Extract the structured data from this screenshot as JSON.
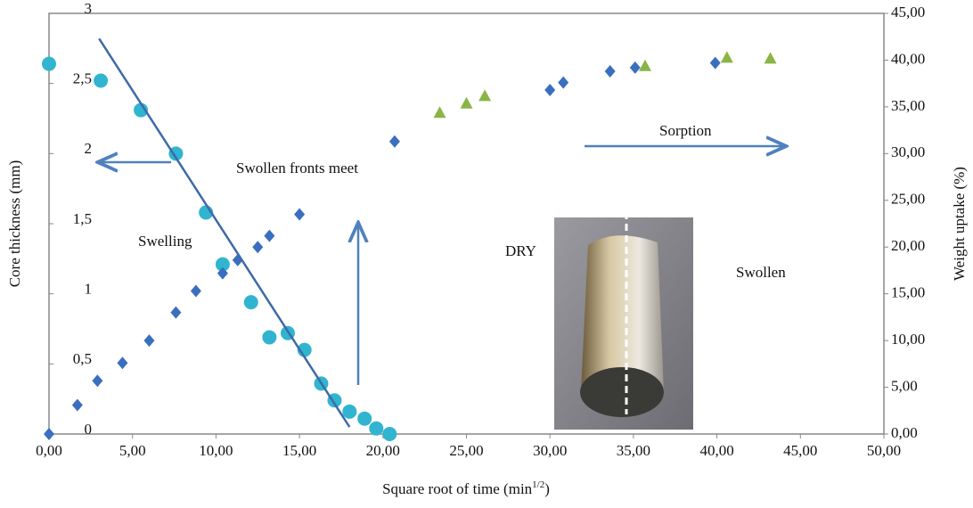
{
  "chart_data": {
    "type": "scatter",
    "x_label": {
      "text": "Square root of time (min",
      "superscript": "1/2",
      "suffix": ")"
    },
    "y_label": "Core thickness (mm)",
    "y2_label": "Weight uptake (%)",
    "xlim": [
      0,
      50
    ],
    "ylim": [
      0,
      3
    ],
    "y2lim": [
      0,
      45
    ],
    "xticks": [
      {
        "value": 0,
        "label": "0,00"
      },
      {
        "value": 5,
        "label": "5,00"
      },
      {
        "value": 10,
        "label": "10,00"
      },
      {
        "value": 15,
        "label": "15,00"
      },
      {
        "value": 20,
        "label": "20,00"
      },
      {
        "value": 25,
        "label": "25,00"
      },
      {
        "value": 30,
        "label": "30,00"
      },
      {
        "value": 35,
        "label": "35,00"
      },
      {
        "value": 40,
        "label": "40,00"
      },
      {
        "value": 45,
        "label": "45,00"
      },
      {
        "value": 50,
        "label": "50,00"
      }
    ],
    "yticks": [
      0,
      {
        "value": 0.5,
        "label": "0,5"
      },
      1,
      {
        "value": 1.5,
        "label": "1,5"
      },
      2,
      {
        "value": 2.5,
        "label": "2,5"
      },
      3
    ],
    "y2ticks": [
      {
        "value": 0,
        "label": "0,00"
      },
      {
        "value": 5,
        "label": "5,00"
      },
      {
        "value": 10,
        "label": "10,00"
      },
      {
        "value": 15,
        "label": "15,00"
      },
      {
        "value": 20,
        "label": "20,00"
      },
      {
        "value": 25,
        "label": "25,00"
      },
      {
        "value": 30,
        "label": "30,00"
      },
      {
        "value": 35,
        "label": "35,00"
      },
      {
        "value": 40,
        "label": "40,00"
      },
      {
        "value": 45,
        "label": "45,00"
      }
    ],
    "series": [
      {
        "marker": "circle",
        "color": "#31b4d0",
        "axis": "y",
        "x": [
          0,
          3.1,
          5.5,
          7.6,
          9.4,
          10.4,
          12.1,
          13.2,
          14.3,
          15.3,
          16.3,
          17.1,
          18.0,
          18.9,
          19.6,
          20.4
        ],
        "values": [
          2.64,
          2.52,
          2.31,
          2.0,
          1.58,
          1.21,
          0.94,
          0.69,
          0.72,
          0.6,
          0.36,
          0.24,
          0.16,
          0.11,
          0.04,
          0.0
        ]
      },
      {
        "marker": "diamond",
        "color": "#3a6fbf",
        "axis": "y2",
        "x": [
          0,
          1.7,
          2.9,
          4.4,
          6.0,
          7.6,
          8.8,
          10.4,
          11.3,
          12.5,
          13.2,
          15.0,
          20.7,
          30.0,
          30.8,
          33.6,
          35.1,
          39.9
        ],
        "values": [
          0,
          3.1,
          5.7,
          7.6,
          10.0,
          13.0,
          15.3,
          17.2,
          18.6,
          20.0,
          21.2,
          23.5,
          31.3,
          36.8,
          37.6,
          38.8,
          39.2,
          39.7
        ]
      },
      {
        "marker": "triangle",
        "color": "#8ab545",
        "axis": "y2",
        "x": [
          23.4,
          25.0,
          26.1,
          35.7,
          40.6,
          43.2
        ],
        "values": [
          34.3,
          35.3,
          36.1,
          39.3,
          40.2,
          40.1
        ]
      },
      {
        "marker": "line",
        "color": "#3e6aa8",
        "axis": "y",
        "x": [
          3.0,
          18.0
        ],
        "values": [
          2.82,
          0.05
        ]
      }
    ],
    "annotations": [
      "Swelling",
      "Swollen fronts meet",
      "Sorption",
      "DRY",
      "Swollen"
    ]
  }
}
